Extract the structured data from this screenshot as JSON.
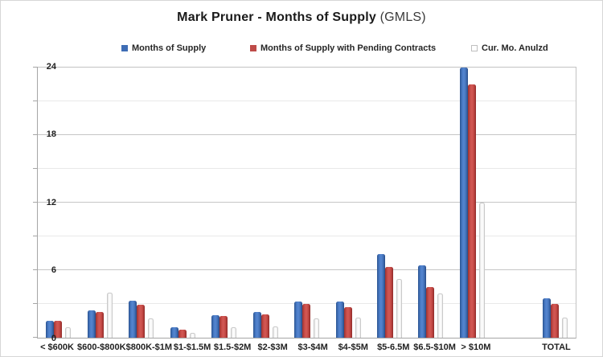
{
  "title": {
    "main": "Mark Pruner - Months of Supply",
    "suffix": "(GMLS)"
  },
  "chart_data": {
    "type": "bar",
    "title": "Mark Pruner - Months of Supply (GMLS)",
    "xlabel": "",
    "ylabel": "",
    "ylim": [
      0,
      24
    ],
    "y_major_ticks": [
      0,
      6,
      12,
      18,
      24
    ],
    "y_minor_step": 3,
    "grid": true,
    "legend_position": "top",
    "gap_before_total": true,
    "categories": [
      "< $600K",
      "$600-$800K",
      "$800K-$1M",
      "$1-$1.5M",
      "$1.5-$2M",
      "$2-$3M",
      "$3-$4M",
      "$4-$5M",
      "$5-6.5M",
      "$6.5-$10M",
      "> $10M",
      "TOTAL"
    ],
    "series": [
      {
        "name": "Months of Supply",
        "color": "#3E6DB5",
        "values": [
          1.5,
          2.4,
          3.3,
          0.9,
          2.0,
          2.3,
          3.2,
          3.2,
          7.4,
          6.4,
          24.0,
          3.5
        ]
      },
      {
        "name": "Months of Supply with Pending Contracts",
        "color": "#BE4B48",
        "values": [
          1.5,
          2.3,
          2.9,
          0.7,
          1.9,
          2.1,
          3.0,
          2.7,
          6.3,
          4.5,
          22.5,
          3.0
        ]
      },
      {
        "name": "Cur. Mo. Anulzd",
        "color": "#FFFFFF",
        "swatch_border": "#BFBFBF",
        "values": [
          0.9,
          4.0,
          1.7,
          0.4,
          0.9,
          1.0,
          1.7,
          1.8,
          5.2,
          3.9,
          12.0,
          1.8
        ]
      }
    ],
    "legend_x_positions": [
      150,
      310,
      585
    ]
  }
}
